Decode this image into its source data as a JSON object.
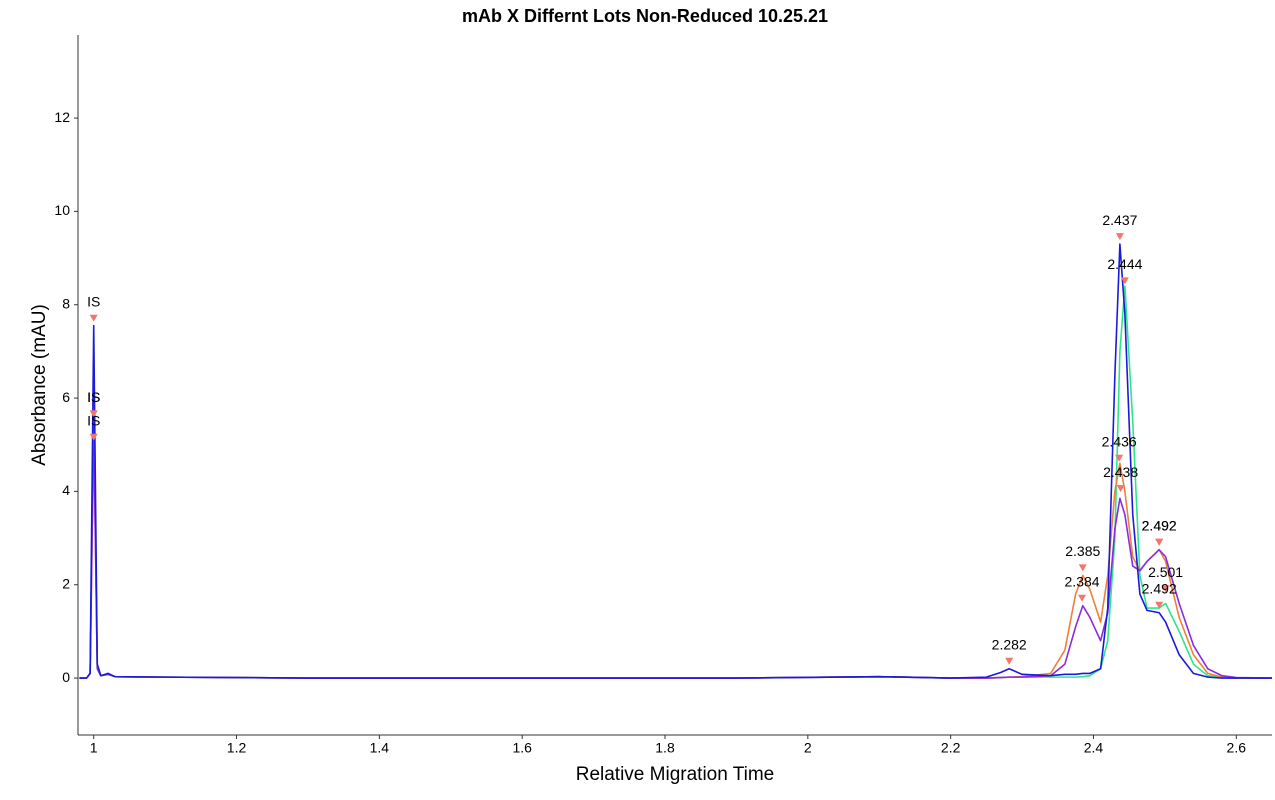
{
  "chart_data": {
    "type": "line",
    "title": "mAb X Differnt Lots Non-Reduced 10.25.21",
    "x_label": "Relative Migration Time",
    "y_label": "Absorbance (mAU)",
    "x": [
      0.98,
      0.99,
      0.995,
      1.0,
      1.005,
      1.01,
      1.02,
      1.03,
      1.1,
      1.3,
      1.5,
      1.7,
      1.9,
      2.1,
      2.2,
      2.25,
      2.27,
      2.282,
      2.3,
      2.34,
      2.36,
      2.375,
      2.385,
      2.395,
      2.41,
      2.42,
      2.43,
      2.437,
      2.444,
      2.455,
      2.465,
      2.475,
      2.492,
      2.501,
      2.52,
      2.54,
      2.56,
      2.58,
      2.6,
      2.65
    ],
    "series": [
      {
        "color": "#2ee68a",
        "values": [
          0,
          0,
          0.1,
          5.6,
          0.2,
          0.05,
          0.08,
          0.03,
          0.02,
          0,
          0,
          0,
          0,
          0.03,
          0,
          0,
          0.01,
          0.02,
          0.02,
          0.02,
          0.02,
          0.02,
          0.03,
          0.05,
          0.2,
          0.8,
          3.0,
          7.0,
          8.4,
          5.5,
          2.2,
          1.5,
          1.5,
          1.6,
          1.0,
          0.3,
          0.05,
          0.01,
          0,
          0
        ]
      },
      {
        "color": "#f07f3c",
        "values": [
          0,
          0,
          0.1,
          5.2,
          0.2,
          0.05,
          0.08,
          0.03,
          0.02,
          0,
          0,
          0,
          0,
          0.03,
          0,
          0,
          0.01,
          0.02,
          0.03,
          0.1,
          0.6,
          1.8,
          2.2,
          1.9,
          1.2,
          2.2,
          4.0,
          4.6,
          4.0,
          2.6,
          2.3,
          2.5,
          2.75,
          2.5,
          1.3,
          0.5,
          0.1,
          0.02,
          0,
          0
        ]
      },
      {
        "color": "#8a2be2",
        "values": [
          0,
          0,
          0.1,
          5.6,
          0.2,
          0.05,
          0.08,
          0.03,
          0.02,
          0,
          0,
          0,
          0,
          0.03,
          0,
          0,
          0.01,
          0.02,
          0.02,
          0.05,
          0.3,
          1.1,
          1.55,
          1.3,
          0.8,
          1.4,
          3.2,
          3.85,
          3.5,
          2.4,
          2.3,
          2.5,
          2.75,
          2.6,
          1.6,
          0.7,
          0.2,
          0.05,
          0.01,
          0
        ]
      },
      {
        "color": "#1a1adb",
        "values": [
          0,
          0,
          0.1,
          7.55,
          0.3,
          0.05,
          0.1,
          0.03,
          0.02,
          0,
          0,
          0,
          0,
          0.03,
          0,
          0.02,
          0.12,
          0.2,
          0.08,
          0.05,
          0.08,
          0.08,
          0.1,
          0.1,
          0.2,
          1.5,
          6.5,
          9.3,
          7.8,
          3.5,
          1.8,
          1.45,
          1.4,
          1.2,
          0.5,
          0.1,
          0.02,
          0,
          0,
          0
        ]
      }
    ],
    "annotations": [
      {
        "x": 1.0,
        "y": 7.7,
        "label": "IS"
      },
      {
        "x": 1.0,
        "y": 5.65,
        "label": "IS"
      },
      {
        "x": 1.0,
        "y": 5.65,
        "label": "IS"
      },
      {
        "x": 1.0,
        "y": 5.15,
        "label": "IS"
      },
      {
        "x": 2.282,
        "y": 0.35,
        "label": "2.282"
      },
      {
        "x": 2.385,
        "y": 2.35,
        "label": "2.385"
      },
      {
        "x": 2.384,
        "y": 1.7,
        "label": "2.384"
      },
      {
        "x": 2.437,
        "y": 9.45,
        "label": "2.437"
      },
      {
        "x": 2.444,
        "y": 8.5,
        "label": "2.444"
      },
      {
        "x": 2.436,
        "y": 4.7,
        "label": "2.436"
      },
      {
        "x": 2.438,
        "y": 4.05,
        "label": "2.438"
      },
      {
        "x": 2.492,
        "y": 2.9,
        "label": "2.492"
      },
      {
        "x": 2.492,
        "y": 2.9,
        "label": "2.492"
      },
      {
        "x": 2.501,
        "y": 1.9,
        "label": "2.501"
      },
      {
        "x": 2.492,
        "y": 1.55,
        "label": "2.492"
      }
    ],
    "marker_color": "#f4756c",
    "xlim": [
      0.978,
      2.65
    ],
    "xticks": [
      1,
      1.2,
      1.4,
      1.6,
      1.8,
      2,
      2.2,
      2.4,
      2.6
    ],
    "ylim": [
      -1.22,
      13.78
    ],
    "yticks": [
      0,
      2,
      4,
      6,
      8,
      10,
      12
    ],
    "grid": false
  }
}
